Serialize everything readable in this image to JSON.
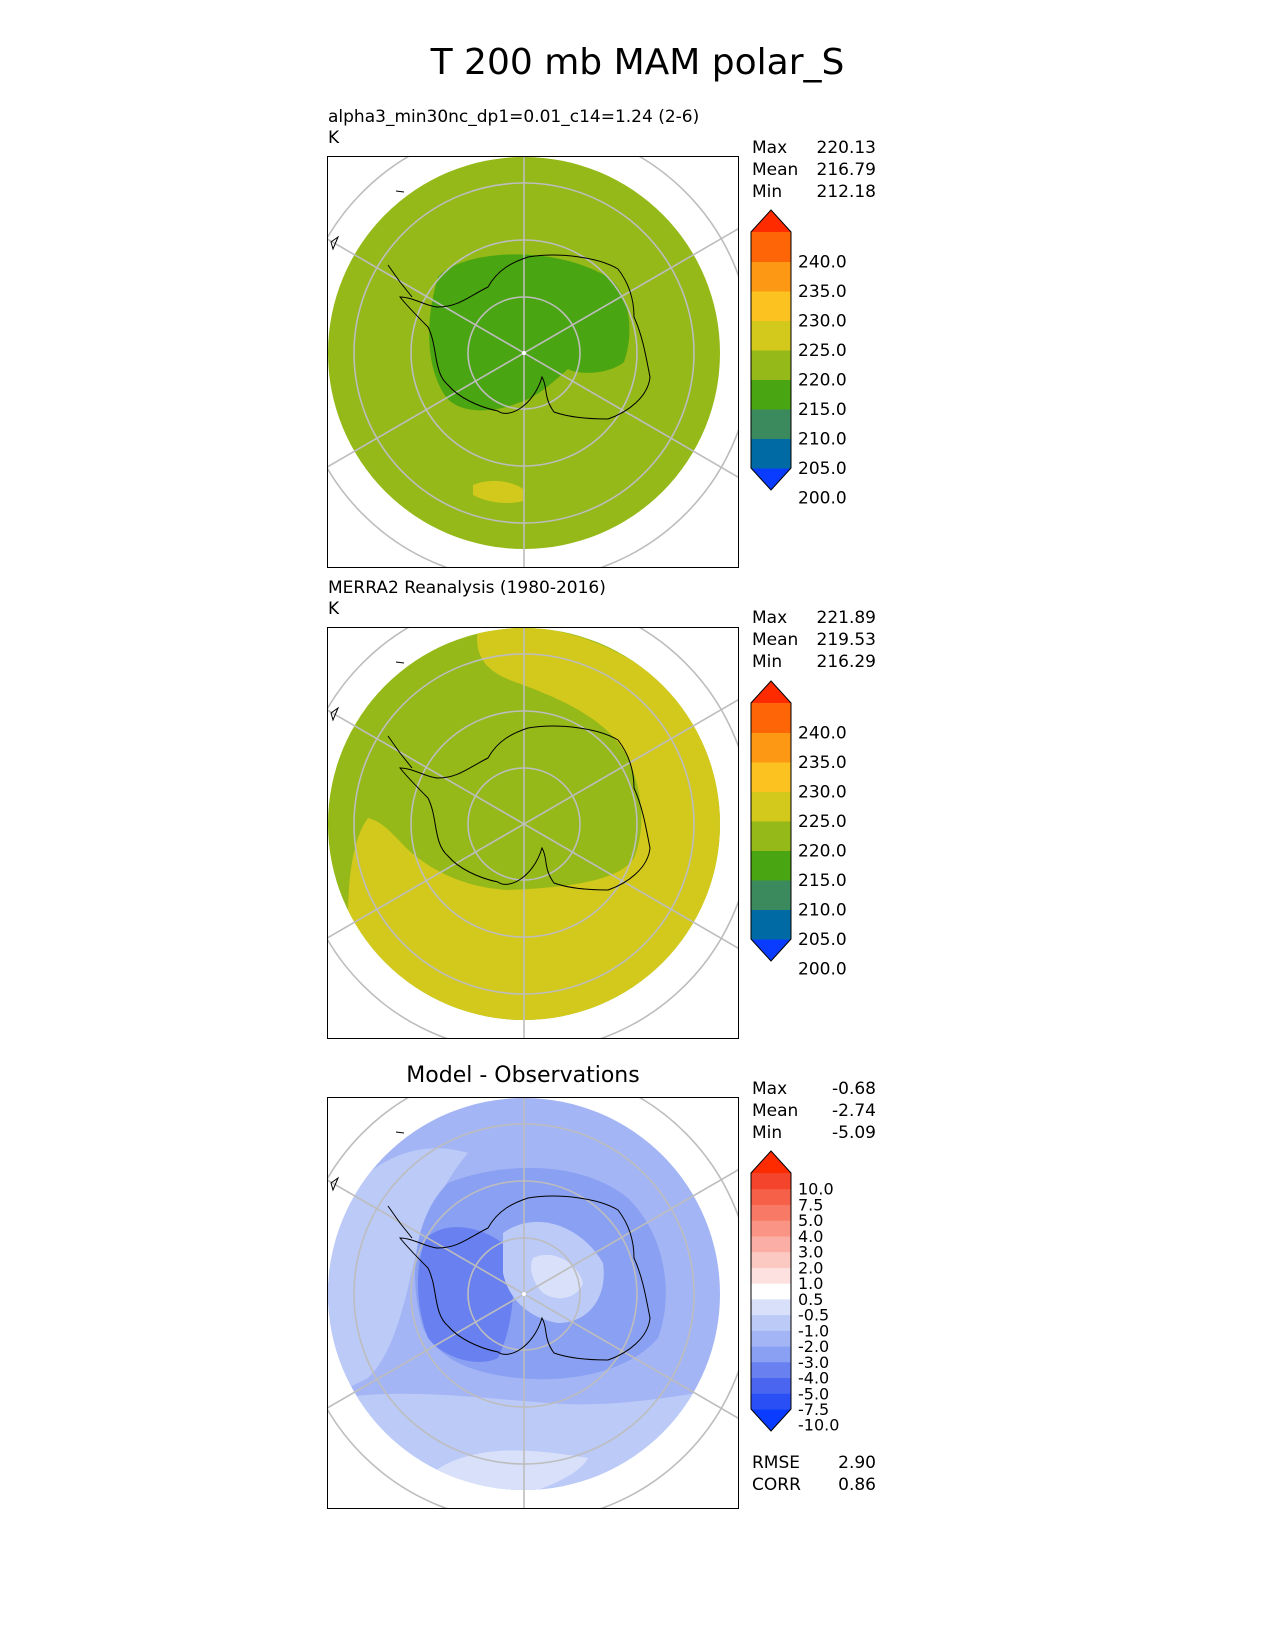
{
  "title": "T 200 mb MAM polar_S",
  "panels": [
    {
      "name": "model",
      "title": "alpha3_min30nc_dp1=0.01_c14=1.24 (2-6)",
      "units": "K",
      "stats": {
        "max_label": "Max",
        "max": "220.13",
        "mean_label": "Mean",
        "mean": "216.79",
        "min_label": "Min",
        "min": "212.18"
      }
    },
    {
      "name": "obs",
      "title": "MERRA2 Reanalysis (1980-2016)",
      "units": "K",
      "stats": {
        "max_label": "Max",
        "max": "221.89",
        "mean_label": "Mean",
        "mean": "219.53",
        "min_label": "Min",
        "min": "216.29"
      }
    },
    {
      "name": "diff",
      "title": "Model - Observations",
      "stats": {
        "max_label": "Max",
        "max": "-0.68",
        "mean_label": "Mean",
        "mean": "-2.74",
        "min_label": "Min",
        "min": "-5.09"
      },
      "metrics": {
        "rmse_label": "RMSE",
        "rmse": "2.90",
        "corr_label": "CORR",
        "corr": "0.86"
      }
    }
  ],
  "colorbars": {
    "temperature": {
      "ticks": [
        "240.0",
        "235.0",
        "230.0",
        "225.0",
        "220.0",
        "215.0",
        "210.0",
        "205.0",
        "200.0"
      ],
      "colors_bottom_to_top": [
        "#0a3cff",
        "#006aa5",
        "#3a8a5e",
        "#4aa512",
        "#95b918",
        "#d3c91d",
        "#fcc21f",
        "#fd9815",
        "#fe6506",
        "#ff2b00"
      ]
    },
    "difference": {
      "ticks": [
        "10.0",
        "7.5",
        "5.0",
        "4.0",
        "3.0",
        "2.0",
        "1.0",
        "0.5",
        "-0.5",
        "-1.0",
        "-2.0",
        "-3.0",
        "-4.0",
        "-5.0",
        "-7.5",
        "-10.0"
      ],
      "colors_bottom_to_top": [
        "#0a3cff",
        "#2a50f5",
        "#4a66f0",
        "#6880f0",
        "#8aa0f2",
        "#a4b5f5",
        "#bccaf8",
        "#d8e0fa",
        "#ffffff",
        "#fde0e0",
        "#fcc8c2",
        "#fbaea5",
        "#fa9484",
        "#f87a66",
        "#f66048",
        "#f4452c",
        "#ff2b00"
      ]
    }
  },
  "chart_data": [
    {
      "type": "heatmap",
      "title": "alpha3_min30nc_dp1=0.01_c14=1.24 (2-6)",
      "variable": "T 200 mb",
      "season": "MAM",
      "projection": "south polar stereographic",
      "units": "K",
      "max": 220.13,
      "mean": 216.79,
      "min": 212.18,
      "levels": [
        200,
        205,
        210,
        215,
        220,
        225,
        230,
        235,
        240
      ]
    },
    {
      "type": "heatmap",
      "title": "MERRA2 Reanalysis (1980-2016)",
      "variable": "T 200 mb",
      "season": "MAM",
      "projection": "south polar stereographic",
      "units": "K",
      "max": 221.89,
      "mean": 219.53,
      "min": 216.29,
      "levels": [
        200,
        205,
        210,
        215,
        220,
        225,
        230,
        235,
        240
      ]
    },
    {
      "type": "heatmap",
      "title": "Model - Observations",
      "projection": "south polar stereographic",
      "max": -0.68,
      "mean": -2.74,
      "min": -5.09,
      "rmse": 2.9,
      "corr": 0.86,
      "levels": [
        -10,
        -7.5,
        -5,
        -4,
        -3,
        -2,
        -1,
        -0.5,
        0.5,
        1,
        2,
        3,
        4,
        5,
        7.5,
        10
      ]
    }
  ]
}
